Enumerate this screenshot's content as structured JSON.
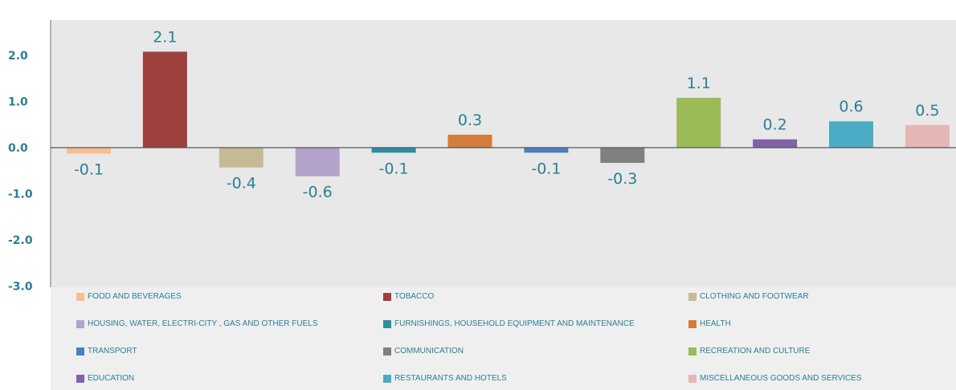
{
  "chart_data": {
    "type": "bar",
    "categories": [
      "FOOD AND BEVERAGES",
      "TOBACCO",
      "CLOTHING AND FOOTWEAR",
      "HOUSING, WATER, ELECTRI-CITY , GAS AND OTHER FUELS",
      "FURNISHINGS, HOUSEHOLD EQUIPMENT AND MAINTENANCE",
      "HEALTH",
      "TRANSPORT",
      "COMMUNICATION",
      "RECREATION AND CULTURE",
      "EDUCATION",
      "RESTAURANTS AND HOTELS",
      "MISCELLANEOUS GOODS AND SERVICES"
    ],
    "values": [
      -0.13,
      2.08,
      -0.43,
      -0.62,
      -0.11,
      0.28,
      -0.11,
      -0.33,
      1.08,
      0.18,
      0.57,
      0.49
    ],
    "labels": [
      "-0.1",
      "2.1",
      "-0.4",
      "-0.6",
      "-0.1",
      "0.3",
      "-0.1",
      "-0.3",
      "1.1",
      "0.2",
      "0.6",
      "0.5"
    ],
    "colors": [
      "#f9bd8f",
      "#9e413d",
      "#c4bb96",
      "#b3a3cb",
      "#2a8fa1",
      "#d57c3a",
      "#4a7fc2",
      "#808080",
      "#9bbb59",
      "#7f62a7",
      "#4bacc6",
      "#e6b6b5"
    ],
    "yticks": [
      "2.0",
      "1.0",
      "0.0",
      "-1.0",
      "-2.0",
      "-3.0"
    ],
    "ylim": [
      -3.0,
      2.3
    ],
    "grid": false,
    "legend_position": "bottom",
    "title": "",
    "xlabel": "",
    "ylabel": ""
  }
}
